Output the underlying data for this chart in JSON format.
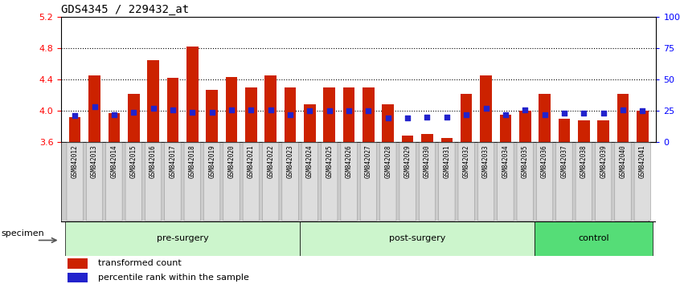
{
  "title": "GDS4345 / 229432_at",
  "samples": [
    "GSM842012",
    "GSM842013",
    "GSM842014",
    "GSM842015",
    "GSM842016",
    "GSM842017",
    "GSM842018",
    "GSM842019",
    "GSM842020",
    "GSM842021",
    "GSM842022",
    "GSM842023",
    "GSM842024",
    "GSM842025",
    "GSM842026",
    "GSM842027",
    "GSM842028",
    "GSM842029",
    "GSM842030",
    "GSM842031",
    "GSM842032",
    "GSM842033",
    "GSM842034",
    "GSM842035",
    "GSM842036",
    "GSM842037",
    "GSM842038",
    "GSM842039",
    "GSM842040",
    "GSM842041"
  ],
  "transformed_count": [
    3.92,
    4.45,
    3.97,
    4.22,
    4.65,
    4.42,
    4.82,
    4.27,
    4.43,
    4.3,
    4.45,
    4.3,
    4.08,
    4.3,
    4.3,
    4.3,
    4.08,
    3.68,
    3.7,
    3.65,
    4.22,
    4.45,
    3.95,
    4.0,
    4.22,
    3.9,
    3.88,
    3.88,
    4.22,
    4.0
  ],
  "percentile_rank": [
    21,
    28,
    22,
    24,
    27,
    26,
    24,
    24,
    26,
    26,
    26,
    22,
    25,
    25,
    25,
    25,
    19,
    19,
    20,
    20,
    22,
    27,
    22,
    26,
    22,
    23,
    23,
    23,
    26,
    25
  ],
  "groups": [
    {
      "name": "pre-surgery",
      "start": 0,
      "end": 12
    },
    {
      "name": "post-surgery",
      "start": 12,
      "end": 24
    },
    {
      "name": "control",
      "start": 24,
      "end": 30
    }
  ],
  "group_colors": [
    "#ccf5cc",
    "#ccf5cc",
    "#55dd77"
  ],
  "ylim": [
    3.6,
    5.2
  ],
  "yticks_left": [
    3.6,
    4.0,
    4.4,
    4.8,
    5.2
  ],
  "yticks_right": [
    0,
    25,
    50,
    75,
    100
  ],
  "bar_color": "#cc2200",
  "dot_color": "#2222cc",
  "bar_bottom": 3.6,
  "specimen_label": "specimen"
}
